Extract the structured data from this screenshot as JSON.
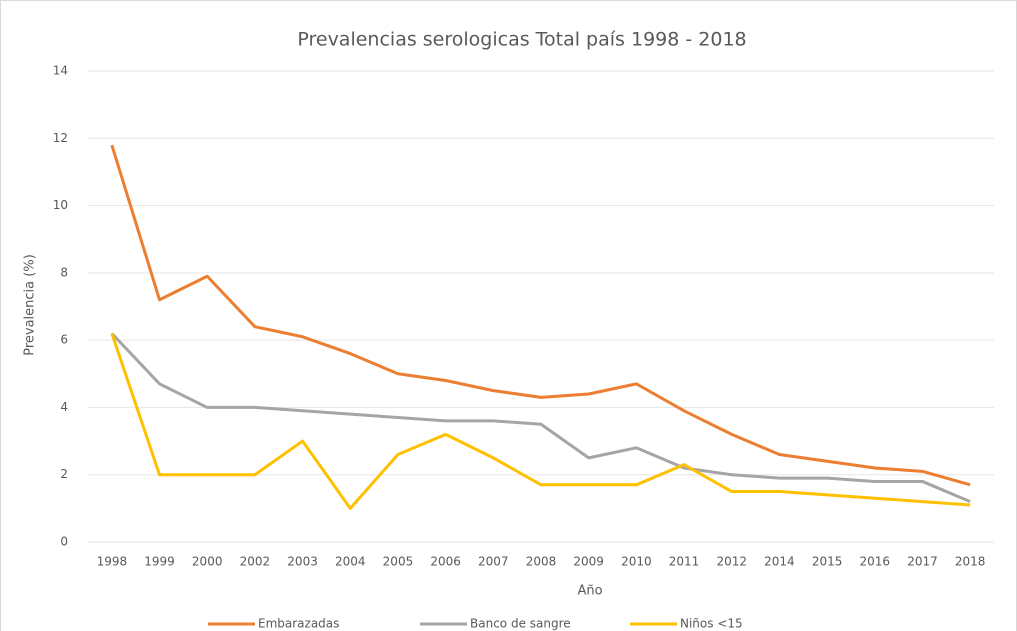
{
  "chart_data": {
    "type": "line",
    "title": "Prevalencias serologicas Total país 1998 - 2018",
    "x_label": "Año",
    "y_label": "Prevalencia (%)",
    "categories": [
      "1998",
      "1999",
      "2000",
      "2002",
      "2003",
      "2004",
      "2005",
      "2006",
      "2007",
      "2008",
      "2009",
      "2010",
      "2011",
      "2012",
      "2014",
      "2015",
      "2016",
      "2017",
      "2018"
    ],
    "series": [
      {
        "name": "Embarazadas",
        "color": "#ed7d31",
        "values": [
          11.8,
          7.2,
          7.9,
          6.4,
          6.1,
          5.6,
          5.0,
          4.8,
          4.5,
          4.3,
          4.4,
          4.7,
          3.9,
          3.2,
          2.6,
          2.4,
          2.2,
          2.1,
          1.7
        ]
      },
      {
        "name": "Banco de sangre",
        "color": "#a5a5a5",
        "values": [
          6.2,
          4.7,
          4.0,
          4.0,
          3.9,
          3.8,
          3.7,
          3.6,
          3.6,
          3.5,
          2.5,
          2.8,
          2.2,
          2.0,
          1.9,
          1.9,
          1.8,
          1.8,
          1.2
        ]
      },
      {
        "name": "Niños <15",
        "color": "#ffc000",
        "values": [
          6.2,
          2.0,
          2.0,
          2.0,
          3.0,
          1.0,
          2.6,
          3.2,
          2.5,
          1.7,
          1.7,
          1.7,
          2.3,
          1.5,
          1.5,
          1.4,
          1.3,
          1.2,
          1.1
        ]
      }
    ],
    "ylim": [
      0,
      14
    ],
    "yticks": [
      0,
      2,
      4,
      6,
      8,
      10,
      12,
      14
    ],
    "grid": true,
    "legend": "bottom"
  }
}
